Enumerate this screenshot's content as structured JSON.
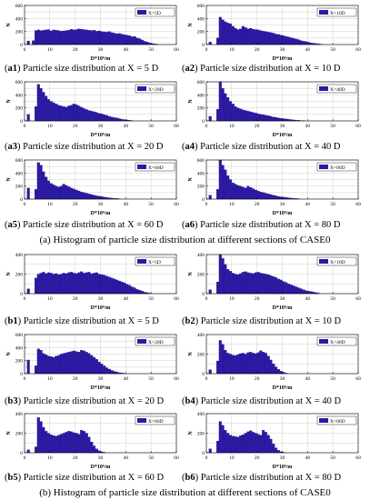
{
  "figure": {
    "section_a_caption": "(a) Histogram of particle size distribution at different sections of CASE0",
    "section_b_caption": "(b) Histogram of particle size distribution at different sections of CASE0"
  },
  "chart_data": [
    {
      "type": "bar",
      "id": "a1",
      "label": "a1",
      "caption": "Particle size distribution at X = 5 D",
      "legend": "X=5D",
      "xlabel": "D*10⁶/m",
      "ylabel": "N",
      "xlim": [
        0,
        60
      ],
      "ylim": [
        0,
        600
      ],
      "xticks": [
        0,
        10,
        20,
        30,
        40,
        50,
        60
      ],
      "yticks": [
        0,
        200,
        400,
        600
      ],
      "bin_width": 1,
      "bins_start": 0,
      "values": [
        0,
        55,
        0,
        60,
        215,
        225,
        215,
        220,
        225,
        230,
        210,
        225,
        220,
        215,
        205,
        210,
        215,
        220,
        235,
        225,
        230,
        240,
        235,
        230,
        225,
        220,
        215,
        220,
        205,
        210,
        200,
        195,
        190,
        200,
        185,
        175,
        165,
        170,
        160,
        150,
        145,
        135,
        120,
        125,
        100,
        90,
        70,
        50,
        40,
        25,
        15,
        10,
        5,
        0,
        0,
        0,
        0,
        0,
        0,
        0
      ]
    },
    {
      "type": "bar",
      "id": "a2",
      "label": "a2",
      "caption": "Particle size distribution at X = 10 D",
      "legend": "X=10D",
      "xlabel": "D*10⁶/m",
      "ylabel": "N",
      "xlim": [
        0,
        60
      ],
      "ylim": [
        0,
        600
      ],
      "xticks": [
        0,
        10,
        20,
        30,
        40,
        50,
        60
      ],
      "yticks": [
        0,
        200,
        400,
        600
      ],
      "bin_width": 1,
      "bins_start": 0,
      "values": [
        0,
        40,
        0,
        0,
        100,
        420,
        380,
        350,
        330,
        320,
        280,
        250,
        230,
        240,
        280,
        260,
        240,
        250,
        235,
        230,
        225,
        215,
        205,
        200,
        190,
        185,
        175,
        160,
        155,
        145,
        135,
        125,
        115,
        105,
        95,
        85,
        75,
        60,
        50,
        45,
        35,
        25,
        20,
        15,
        10,
        5,
        0,
        0,
        0,
        0,
        0,
        0,
        0,
        0,
        0,
        0,
        0,
        0,
        0,
        0
      ]
    },
    {
      "type": "bar",
      "id": "a3",
      "label": "a3",
      "caption": "Particle size distribution at X = 20 D",
      "legend": "X=20D",
      "xlabel": "D*10⁶/m",
      "ylabel": "N",
      "xlim": [
        0,
        60
      ],
      "ylim": [
        0,
        600
      ],
      "xticks": [
        0,
        10,
        20,
        30,
        40,
        50,
        60
      ],
      "yticks": [
        0,
        200,
        400,
        600
      ],
      "bin_width": 1,
      "bins_start": 0,
      "values": [
        0,
        100,
        0,
        0,
        220,
        560,
        500,
        440,
        380,
        330,
        300,
        280,
        260,
        240,
        230,
        220,
        210,
        230,
        240,
        260,
        250,
        230,
        210,
        190,
        175,
        160,
        150,
        140,
        130,
        115,
        110,
        95,
        85,
        70,
        60,
        50,
        45,
        35,
        25,
        20,
        15,
        10,
        5,
        0,
        0,
        0,
        0,
        0,
        0,
        0,
        0,
        0,
        0,
        0,
        0,
        0,
        0,
        0,
        0,
        0
      ]
    },
    {
      "type": "bar",
      "id": "a4",
      "label": "a4",
      "caption": "Particle size distribution at X = 40 D",
      "legend": "X=40D",
      "xlabel": "D*10⁶/m",
      "ylabel": "N",
      "xlim": [
        0,
        60
      ],
      "ylim": [
        0,
        600
      ],
      "xticks": [
        0,
        10,
        20,
        30,
        40,
        50,
        60
      ],
      "yticks": [
        0,
        200,
        400,
        600
      ],
      "bin_width": 1,
      "bins_start": 0,
      "values": [
        0,
        70,
        0,
        0,
        180,
        600,
        500,
        420,
        360,
        300,
        260,
        220,
        200,
        185,
        170,
        160,
        150,
        140,
        130,
        120,
        110,
        100,
        95,
        85,
        80,
        70,
        60,
        55,
        45,
        40,
        35,
        30,
        25,
        20,
        15,
        10,
        10,
        5,
        5,
        0,
        0,
        0,
        0,
        0,
        0,
        0,
        0,
        0,
        0,
        0,
        0,
        0,
        0,
        0,
        0,
        0,
        0,
        0,
        0,
        0
      ]
    },
    {
      "type": "bar",
      "id": "a5",
      "label": "a5",
      "caption": "Particle size distribution at X = 60 D",
      "legend": "X=60D",
      "xlabel": "D*10⁶/m",
      "ylabel": "N",
      "xlim": [
        0,
        60
      ],
      "ylim": [
        0,
        600
      ],
      "xticks": [
        0,
        10,
        20,
        30,
        40,
        50,
        60
      ],
      "yticks": [
        0,
        200,
        400,
        600
      ],
      "bin_width": 1,
      "bins_start": 0,
      "values": [
        0,
        170,
        0,
        0,
        150,
        560,
        520,
        420,
        340,
        280,
        240,
        220,
        200,
        185,
        200,
        230,
        210,
        190,
        170,
        155,
        140,
        125,
        110,
        100,
        90,
        80,
        70,
        60,
        50,
        45,
        40,
        30,
        25,
        20,
        15,
        10,
        10,
        5,
        0,
        0,
        0,
        0,
        0,
        0,
        0,
        0,
        0,
        0,
        0,
        0,
        0,
        0,
        0,
        0,
        0,
        0,
        0,
        0,
        0,
        0
      ]
    },
    {
      "type": "bar",
      "id": "a6",
      "label": "a6",
      "caption": "Particle size distribution at X = 80 D",
      "legend": "X=80D",
      "xlabel": "D*10⁶/m",
      "ylabel": "N",
      "xlim": [
        0,
        60
      ],
      "ylim": [
        0,
        600
      ],
      "xticks": [
        0,
        10,
        20,
        30,
        40,
        50,
        60
      ],
      "yticks": [
        0,
        200,
        400,
        600
      ],
      "bin_width": 1,
      "bins_start": 0,
      "values": [
        0,
        60,
        0,
        0,
        150,
        600,
        520,
        450,
        360,
        300,
        250,
        230,
        210,
        200,
        185,
        170,
        200,
        180,
        160,
        140,
        125,
        110,
        100,
        90,
        80,
        70,
        60,
        50,
        40,
        35,
        30,
        25,
        20,
        15,
        10,
        10,
        5,
        0,
        0,
        0,
        0,
        0,
        0,
        0,
        0,
        0,
        0,
        0,
        0,
        0,
        0,
        0,
        0,
        0,
        0,
        0,
        0,
        0,
        0,
        0
      ]
    },
    {
      "type": "bar",
      "id": "b1",
      "label": "b1",
      "caption": "Particle size distribution at X = 5 D",
      "legend": "X=5D",
      "xlabel": "D*10⁶/m",
      "ylabel": "N",
      "xlim": [
        0,
        60
      ],
      "ylim": [
        0,
        400
      ],
      "xticks": [
        0,
        10,
        20,
        30,
        40,
        50,
        60
      ],
      "yticks": [
        0,
        200,
        400
      ],
      "bin_width": 1,
      "bins_start": 0,
      "values": [
        0,
        50,
        0,
        0,
        160,
        200,
        210,
        220,
        205,
        215,
        210,
        200,
        205,
        195,
        200,
        210,
        205,
        215,
        220,
        210,
        205,
        215,
        225,
        210,
        215,
        220,
        205,
        210,
        215,
        200,
        195,
        190,
        180,
        170,
        160,
        150,
        140,
        130,
        120,
        110,
        95,
        85,
        70,
        60,
        45,
        35,
        25,
        15,
        10,
        5,
        0,
        0,
        0,
        0,
        0,
        0,
        0,
        0,
        0,
        0
      ]
    },
    {
      "type": "bar",
      "id": "b2",
      "label": "b2",
      "caption": "Particle size distribution at X = 10 D",
      "legend": "X=10D",
      "xlabel": "D*10⁶/m",
      "ylabel": "N",
      "xlim": [
        0,
        60
      ],
      "ylim": [
        0,
        400
      ],
      "xticks": [
        0,
        10,
        20,
        30,
        40,
        50,
        60
      ],
      "yticks": [
        0,
        200,
        400
      ],
      "bin_width": 1,
      "bins_start": 0,
      "values": [
        0,
        40,
        0,
        0,
        120,
        420,
        360,
        300,
        250,
        230,
        210,
        200,
        195,
        205,
        220,
        225,
        215,
        210,
        205,
        215,
        220,
        210,
        205,
        200,
        195,
        185,
        175,
        165,
        150,
        140,
        125,
        115,
        100,
        90,
        80,
        70,
        60,
        50,
        40,
        30,
        25,
        20,
        15,
        10,
        5,
        0,
        0,
        0,
        0,
        0,
        0,
        0,
        0,
        0,
        0,
        0,
        0,
        0,
        0,
        0
      ]
    },
    {
      "type": "bar",
      "id": "b3",
      "label": "b3",
      "caption": "Particle size distribution at X = 20 D",
      "legend": "X=20D",
      "xlabel": "D*10⁶/m",
      "ylabel": "N",
      "xlim": [
        0,
        60
      ],
      "ylim": [
        0,
        600
      ],
      "xticks": [
        0,
        10,
        20,
        30,
        40,
        50,
        60
      ],
      "yticks": [
        0,
        200,
        400,
        600
      ],
      "bin_width": 1,
      "bins_start": 0,
      "values": [
        0,
        210,
        0,
        0,
        120,
        380,
        360,
        310,
        290,
        270,
        260,
        250,
        270,
        280,
        300,
        310,
        320,
        330,
        340,
        350,
        340,
        330,
        360,
        350,
        330,
        310,
        280,
        250,
        220,
        180,
        150,
        120,
        90,
        70,
        50,
        35,
        25,
        15,
        10,
        5,
        0,
        0,
        0,
        0,
        0,
        0,
        0,
        0,
        0,
        0,
        0,
        0,
        0,
        0,
        0,
        0,
        0,
        0,
        0,
        0
      ]
    },
    {
      "type": "bar",
      "id": "b4",
      "label": "b4",
      "caption": "Particle size distribution at X = 40 D",
      "legend": "X=40D",
      "xlabel": "D*10⁶/m",
      "ylabel": "N",
      "xlim": [
        0,
        60
      ],
      "ylim": [
        0,
        400
      ],
      "xticks": [
        0,
        10,
        20,
        30,
        40,
        50,
        60
      ],
      "yticks": [
        0,
        200,
        400
      ],
      "bin_width": 1,
      "bins_start": 0,
      "values": [
        0,
        40,
        0,
        0,
        130,
        340,
        300,
        240,
        210,
        200,
        190,
        185,
        195,
        205,
        210,
        200,
        215,
        220,
        210,
        205,
        215,
        235,
        220,
        210,
        180,
        140,
        100,
        70,
        45,
        25,
        15,
        5,
        0,
        0,
        0,
        0,
        0,
        0,
        0,
        0,
        0,
        0,
        0,
        0,
        0,
        0,
        0,
        0,
        0,
        0,
        0,
        0,
        0,
        0,
        0,
        0,
        0,
        0,
        0,
        0
      ]
    },
    {
      "type": "bar",
      "id": "b5",
      "label": "b5",
      "caption": "Particle size distribution at X = 60 D",
      "legend": "X=60D",
      "xlabel": "D*10⁶/m",
      "ylabel": "N",
      "xlim": [
        0,
        60
      ],
      "ylim": [
        0,
        400
      ],
      "xticks": [
        0,
        10,
        20,
        30,
        40,
        50,
        60
      ],
      "yticks": [
        0,
        200,
        400
      ],
      "bin_width": 1,
      "bins_start": 0,
      "values": [
        0,
        30,
        0,
        0,
        60,
        360,
        320,
        260,
        220,
        200,
        185,
        175,
        170,
        180,
        190,
        200,
        210,
        220,
        215,
        205,
        200,
        190,
        230,
        220,
        200,
        160,
        110,
        70,
        40,
        20,
        10,
        5,
        0,
        0,
        0,
        0,
        0,
        0,
        0,
        0,
        0,
        0,
        0,
        0,
        0,
        0,
        0,
        0,
        0,
        0,
        0,
        0,
        0,
        0,
        0,
        0,
        0,
        0,
        0,
        0
      ]
    },
    {
      "type": "bar",
      "id": "b6",
      "label": "b6",
      "caption": "Particle size distribution at X = 80 D",
      "legend": "X=80D",
      "xlabel": "D*10⁶/m",
      "ylabel": "N",
      "xlim": [
        0,
        60
      ],
      "ylim": [
        0,
        400
      ],
      "xticks": [
        0,
        10,
        20,
        30,
        40,
        50,
        60
      ],
      "yticks": [
        0,
        200,
        400
      ],
      "bin_width": 1,
      "bins_start": 0,
      "values": [
        0,
        40,
        0,
        0,
        120,
        320,
        280,
        230,
        200,
        180,
        170,
        165,
        160,
        175,
        185,
        200,
        215,
        225,
        210,
        200,
        190,
        180,
        230,
        210,
        180,
        140,
        90,
        50,
        25,
        10,
        5,
        0,
        0,
        0,
        0,
        0,
        0,
        0,
        0,
        0,
        0,
        0,
        0,
        0,
        0,
        0,
        0,
        0,
        0,
        0,
        0,
        0,
        0,
        0,
        0,
        0,
        0,
        0,
        0,
        0
      ]
    }
  ],
  "style": {
    "bar_color": "#2b1aa6",
    "bar_edge": "#1a0f75",
    "grid_color": "#cfcfcf"
  }
}
